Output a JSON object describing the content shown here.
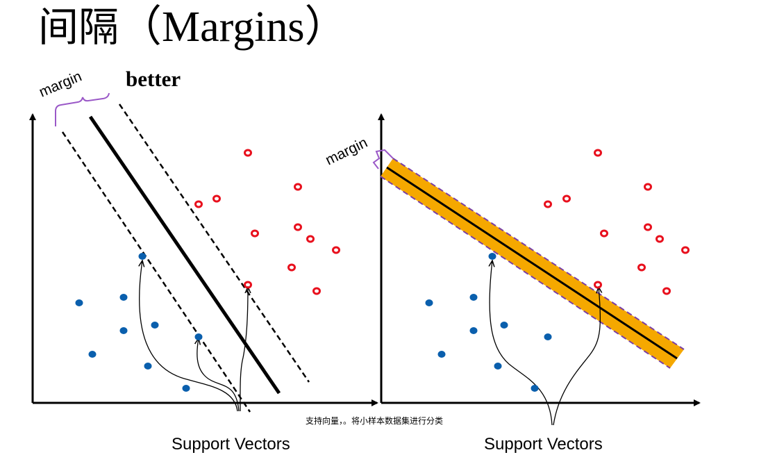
{
  "title": {
    "cjk": "间隔",
    "latin": "（Margins）"
  },
  "left_panel": {
    "margin_label": "margin",
    "quality_label": "better",
    "support_vectors_label": "Support Vectors"
  },
  "right_panel": {
    "margin_label": "margin",
    "support_vectors_label": "Support Vectors"
  },
  "caption": "支持向量，。将小样本数据集进行分类",
  "colors": {
    "positive": "#e8101d",
    "negative": "#0a5fad",
    "margin_band": "#f5a800",
    "margin_edge": "#7a3fa5",
    "brace": "#9a58c7"
  }
}
